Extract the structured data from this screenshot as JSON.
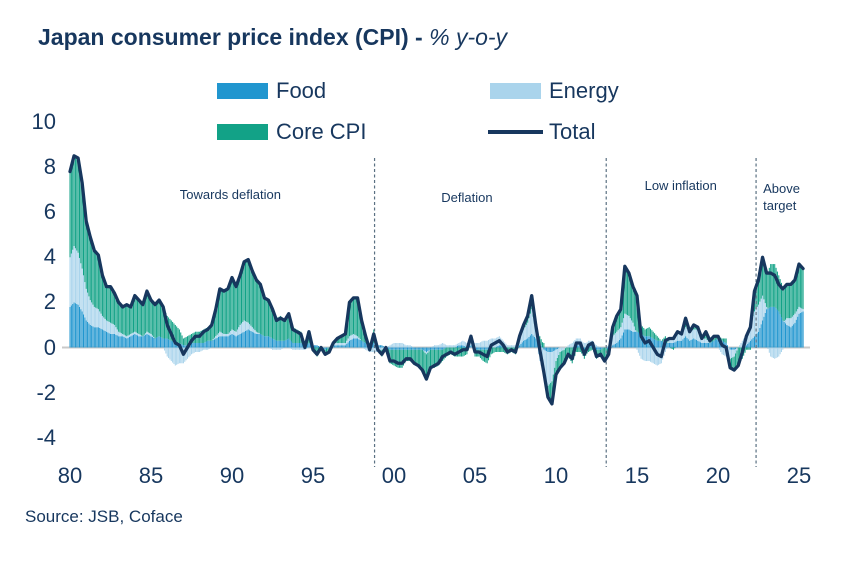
{
  "title": {
    "main": "Japan consumer price index (CPI) - ",
    "suffix": "% y-o-y"
  },
  "source": "Source: JSB, Coface",
  "colors": {
    "text": "#17375e",
    "food": "#2196cf",
    "energy": "#aad4ec",
    "core": "#12a287",
    "total_line": "#17375e",
    "zero_line": "#c9c9c9",
    "divider": "#5a7082",
    "background": "#ffffff"
  },
  "legend": {
    "items": [
      {
        "label": "Food",
        "color": "#2196cf",
        "swatch": "bar"
      },
      {
        "label": "Energy",
        "color": "#aad4ec",
        "swatch": "bar"
      },
      {
        "label": "Core CPI",
        "color": "#12a287",
        "swatch": "bar"
      },
      {
        "label": "Total",
        "color": "#17375e",
        "swatch": "line"
      }
    ]
  },
  "chart_data": {
    "type": "stacked-bar+line",
    "title": "Japan consumer price index (CPI) - % y-o-y",
    "x_start": 1980.0,
    "x_step": 0.25,
    "x_end": 2025.25,
    "ylim": [
      -4,
      10
    ],
    "y_ticks": [
      10,
      8,
      6,
      4,
      2,
      0,
      -2,
      -4
    ],
    "x_ticks": [
      {
        "year": 1980,
        "label": "80"
      },
      {
        "year": 1985,
        "label": "85"
      },
      {
        "year": 1990,
        "label": "90"
      },
      {
        "year": 1995,
        "label": "95"
      },
      {
        "year": 2000,
        "label": "00"
      },
      {
        "year": 2005,
        "label": "05"
      },
      {
        "year": 2010,
        "label": "10"
      },
      {
        "year": 2015,
        "label": "15"
      },
      {
        "year": 2020,
        "label": "20"
      },
      {
        "year": 2025,
        "label": "25"
      }
    ],
    "grid": false,
    "zero_line": true,
    "legend_position": "top",
    "dividers": [
      {
        "x_year": 1998.8
      },
      {
        "x_year": 2013.1
      },
      {
        "x_year": 2022.35
      }
    ],
    "annotations": [
      {
        "label": "Towards deflation",
        "x_year": 1989.9,
        "y_value": 6.7,
        "align": "center"
      },
      {
        "label": "Deflation",
        "x_year": 2004.5,
        "y_value": 6.6,
        "align": "center"
      },
      {
        "label": "Low inflation",
        "x_year": 2017.7,
        "y_value": 7.1,
        "align": "center"
      },
      {
        "label": "Above target",
        "x_year": 2022.6,
        "y_value": 7.0,
        "align": "left"
      }
    ],
    "series": [
      {
        "name": "Food",
        "type": "bar",
        "color": "#2196cf",
        "values": [
          1.8,
          2.0,
          1.9,
          1.6,
          1.2,
          1.0,
          0.9,
          0.9,
          0.8,
          0.7,
          0.6,
          0.6,
          0.5,
          0.5,
          0.4,
          0.5,
          0.6,
          0.5,
          0.5,
          0.6,
          0.5,
          0.4,
          0.5,
          0.4,
          0.4,
          0.3,
          0.2,
          0.2,
          0.1,
          0.1,
          0.2,
          0.2,
          0.2,
          0.2,
          0.3,
          0.3,
          0.4,
          0.5,
          0.5,
          0.5,
          0.6,
          0.5,
          0.6,
          0.7,
          0.8,
          0.7,
          0.6,
          0.6,
          0.5,
          0.5,
          0.4,
          0.3,
          0.3,
          0.3,
          0.4,
          0.2,
          0.2,
          0.2,
          0.1,
          0.2,
          0.1,
          0.1,
          0.0,
          -0.1,
          0.0,
          0.1,
          0.1,
          0.1,
          0.1,
          0.3,
          0.4,
          0.4,
          0.3,
          0.2,
          0.1,
          0.2,
          0.1,
          0.1,
          0.0,
          -0.1,
          -0.1,
          -0.1,
          -0.1,
          -0.1,
          -0.1,
          -0.1,
          -0.1,
          -0.1,
          -0.2,
          -0.1,
          -0.1,
          -0.1,
          -0.1,
          0.0,
          0.0,
          0.0,
          0.1,
          0.1,
          0.0,
          0.1,
          -0.1,
          -0.1,
          -0.1,
          -0.1,
          0.0,
          0.0,
          0.1,
          0.1,
          0.0,
          0.0,
          0.0,
          0.1,
          0.3,
          0.4,
          0.6,
          0.4,
          0.2,
          -0.1,
          -0.2,
          -0.2,
          -0.1,
          0.0,
          0.0,
          0.0,
          0.0,
          0.1,
          0.1,
          -0.1,
          0.1,
          0.1,
          -0.1,
          -0.1,
          0.0,
          -0.1,
          0.1,
          0.2,
          0.4,
          0.8,
          0.8,
          0.7,
          0.7,
          0.6,
          0.5,
          0.5,
          0.4,
          0.3,
          0.3,
          0.2,
          0.2,
          0.2,
          0.3,
          0.3,
          0.5,
          0.3,
          0.4,
          0.3,
          0.2,
          0.2,
          0.2,
          0.3,
          0.4,
          0.3,
          0.2,
          -0.1,
          -0.1,
          0.0,
          0.0,
          0.1,
          0.3,
          0.5,
          0.7,
          1.2,
          1.7,
          1.8,
          1.8,
          1.6,
          1.2,
          1.0,
          0.9,
          1.1,
          1.5,
          1.6
        ]
      },
      {
        "name": "Energy",
        "type": "bar",
        "color": "#aad4ec",
        "values": [
          2.2,
          2.5,
          2.3,
          1.9,
          1.4,
          1.1,
          0.9,
          0.8,
          0.6,
          0.5,
          0.5,
          0.4,
          0.2,
          0.1,
          0.1,
          0.1,
          0.1,
          0.1,
          0.0,
          0.1,
          0.1,
          0.0,
          0.0,
          0.0,
          -0.4,
          -0.6,
          -0.8,
          -0.7,
          -0.7,
          -0.5,
          -0.3,
          -0.2,
          -0.2,
          -0.1,
          -0.1,
          0.0,
          0.1,
          0.2,
          0.1,
          0.1,
          0.2,
          0.2,
          0.4,
          0.5,
          0.3,
          0.2,
          0.1,
          0.0,
          0.0,
          0.0,
          -0.1,
          -0.1,
          -0.1,
          0.0,
          0.0,
          -0.1,
          -0.1,
          -0.1,
          -0.1,
          0.0,
          0.0,
          0.0,
          0.0,
          0.0,
          0.0,
          0.1,
          0.1,
          0.1,
          0.1,
          0.2,
          0.2,
          0.1,
          0.0,
          -0.1,
          -0.2,
          -0.2,
          -0.2,
          -0.1,
          0.0,
          0.1,
          0.2,
          0.2,
          0.2,
          0.1,
          0.1,
          0.0,
          0.0,
          0.0,
          -0.1,
          0.0,
          0.1,
          0.1,
          0.2,
          0.1,
          0.1,
          0.1,
          0.1,
          0.2,
          0.2,
          0.2,
          0.2,
          0.2,
          0.3,
          0.3,
          0.4,
          0.4,
          0.4,
          0.2,
          0.1,
          0.1,
          0.1,
          0.3,
          0.5,
          0.7,
          1.1,
          0.3,
          -0.6,
          -1.2,
          -1.5,
          -1.3,
          -0.5,
          -0.2,
          -0.1,
          0.1,
          0.2,
          0.3,
          0.3,
          0.2,
          0.2,
          0.2,
          0.1,
          0.0,
          0.0,
          0.1,
          0.4,
          0.5,
          0.5,
          0.7,
          0.6,
          0.4,
          -0.1,
          -0.5,
          -0.6,
          -0.6,
          -0.7,
          -0.8,
          -0.7,
          -0.2,
          0.2,
          0.3,
          0.3,
          0.3,
          0.4,
          0.4,
          0.4,
          0.5,
          0.2,
          0.2,
          0.0,
          0.0,
          0.0,
          -0.3,
          -0.4,
          -0.4,
          -0.3,
          0.0,
          0.3,
          0.5,
          0.7,
          1.1,
          1.2,
          1.1,
          0.1,
          -0.4,
          -0.5,
          -0.4,
          -0.1,
          0.3,
          0.4,
          0.4,
          0.3,
          0.1
        ]
      },
      {
        "name": "Core CPI",
        "type": "bar",
        "color": "#12a287",
        "values": [
          3.8,
          4.0,
          4.2,
          3.8,
          3.0,
          2.8,
          2.5,
          2.4,
          1.8,
          1.5,
          1.6,
          1.4,
          1.3,
          1.2,
          1.4,
          1.2,
          1.6,
          1.5,
          1.4,
          1.8,
          1.5,
          1.5,
          1.6,
          1.4,
          1.0,
          0.9,
          0.8,
          0.6,
          0.3,
          0.4,
          0.4,
          0.5,
          0.5,
          0.6,
          0.6,
          0.7,
          1.2,
          1.9,
          1.9,
          2.0,
          2.3,
          2.0,
          2.2,
          2.6,
          2.8,
          2.5,
          2.3,
          2.2,
          1.7,
          1.6,
          1.4,
          1.0,
          1.1,
          0.9,
          1.1,
          0.7,
          0.6,
          0.5,
          0.0,
          0.5,
          -0.2,
          -0.4,
          0.0,
          -0.2,
          -0.2,
          0.0,
          0.2,
          0.3,
          0.4,
          1.5,
          1.6,
          1.7,
          0.9,
          0.4,
          0.0,
          0.6,
          0.0,
          -0.3,
          0.0,
          -0.6,
          -0.7,
          -0.8,
          -0.8,
          -0.5,
          -0.5,
          -0.6,
          -0.7,
          -0.9,
          -1.1,
          -0.8,
          -0.8,
          -0.7,
          -0.5,
          -0.4,
          -0.3,
          -0.4,
          -0.4,
          -0.4,
          -0.3,
          0.2,
          -0.3,
          -0.3,
          -0.5,
          -0.6,
          -0.3,
          -0.2,
          -0.2,
          -0.2,
          -0.3,
          -0.2,
          -0.3,
          0.1,
          0.2,
          0.3,
          0.6,
          0.3,
          0.3,
          0.2,
          -0.5,
          -1.0,
          -0.6,
          -0.7,
          -0.6,
          -0.4,
          -0.7,
          -0.2,
          -0.2,
          -0.4,
          -0.2,
          -0.1,
          -0.4,
          -0.2,
          -0.6,
          -0.3,
          0.4,
          0.7,
          0.8,
          2.1,
          1.9,
          1.6,
          1.7,
          0.4,
          0.3,
          0.4,
          0.3,
          0.2,
          0.0,
          0.3,
          0.0,
          -0.1,
          0.1,
          0.0,
          0.4,
          0.0,
          0.2,
          0.1,
          0.0,
          0.3,
          0.1,
          0.2,
          0.1,
          0.1,
          0.2,
          -0.4,
          -0.6,
          -0.8,
          -0.5,
          -0.1,
          -0.1,
          0.9,
          1.1,
          1.7,
          1.5,
          1.9,
          1.9,
          1.6,
          1.5,
          1.5,
          1.5,
          1.5,
          1.9,
          1.8
        ]
      },
      {
        "name": "Total",
        "type": "line",
        "color": "#17375e",
        "values": [
          7.8,
          8.5,
          8.4,
          7.3,
          5.6,
          4.9,
          4.3,
          4.1,
          3.2,
          2.7,
          2.7,
          2.4,
          2.0,
          1.8,
          1.9,
          1.8,
          2.3,
          2.1,
          1.9,
          2.5,
          2.1,
          1.9,
          2.1,
          1.8,
          1.0,
          0.6,
          0.2,
          0.1,
          -0.3,
          0.0,
          0.3,
          0.5,
          0.5,
          0.7,
          0.8,
          1.0,
          1.7,
          2.6,
          2.5,
          2.6,
          3.1,
          2.7,
          3.2,
          3.8,
          3.9,
          3.4,
          3.0,
          2.8,
          2.2,
          2.1,
          1.7,
          1.2,
          1.3,
          1.2,
          1.5,
          0.8,
          0.7,
          0.6,
          0.0,
          0.7,
          -0.1,
          -0.3,
          0.0,
          -0.3,
          -0.2,
          0.2,
          0.4,
          0.5,
          0.6,
          2.0,
          2.2,
          2.2,
          1.2,
          0.5,
          -0.1,
          0.6,
          -0.1,
          -0.3,
          0.0,
          -0.6,
          -0.6,
          -0.7,
          -0.7,
          -0.5,
          -0.5,
          -0.7,
          -0.8,
          -1.0,
          -1.4,
          -0.9,
          -0.8,
          -0.7,
          -0.4,
          -0.3,
          -0.2,
          -0.3,
          -0.2,
          -0.1,
          -0.1,
          0.5,
          -0.2,
          -0.2,
          -0.3,
          -0.4,
          0.1,
          0.2,
          0.3,
          0.1,
          -0.2,
          -0.1,
          -0.2,
          0.5,
          1.0,
          1.4,
          2.3,
          1.0,
          -0.1,
          -1.1,
          -2.2,
          -2.5,
          -1.2,
          -0.9,
          -0.7,
          -0.3,
          -0.5,
          0.2,
          0.2,
          -0.3,
          0.1,
          0.2,
          -0.4,
          -0.3,
          -0.6,
          -0.3,
          0.9,
          1.4,
          1.7,
          3.6,
          3.3,
          2.7,
          2.3,
          0.5,
          0.2,
          0.3,
          0.0,
          -0.3,
          -0.4,
          0.3,
          0.4,
          0.4,
          0.7,
          0.6,
          1.3,
          0.7,
          1.0,
          0.9,
          0.4,
          0.7,
          0.3,
          0.5,
          0.5,
          0.1,
          0.0,
          -0.9,
          -1.0,
          -0.8,
          -0.2,
          0.5,
          0.9,
          2.5,
          3.0,
          4.0,
          3.3,
          3.3,
          3.2,
          2.8,
          2.6,
          2.8,
          2.8,
          3.0,
          3.7,
          3.5
        ]
      }
    ]
  }
}
